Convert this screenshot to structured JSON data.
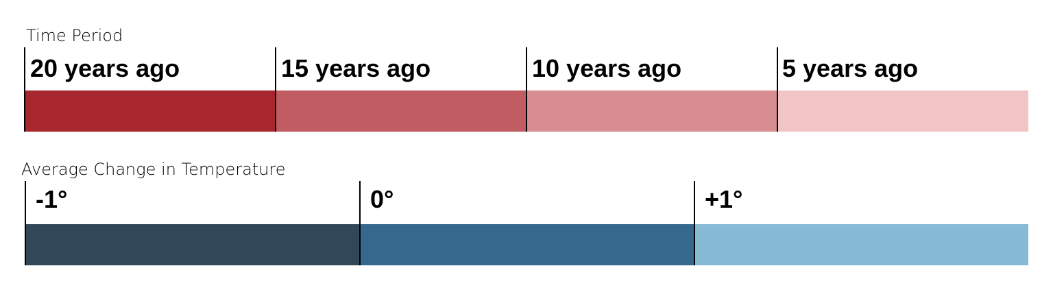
{
  "time_legend": {
    "title": "Time Period",
    "items": [
      {
        "label": "20 years ago",
        "color": "#a8262d"
      },
      {
        "label": "15 years ago",
        "color": "#c25c63"
      },
      {
        "label": "10 years ago",
        "color": "#d88e90"
      },
      {
        "label": "5 years ago",
        "color": "#f1c4c6"
      }
    ]
  },
  "temperature_legend": {
    "title": "Average Change in Temperature",
    "items": [
      {
        "label": "-1°",
        "color": "#324858"
      },
      {
        "label": "0°",
        "color": "#35688d"
      },
      {
        "label": "+1°",
        "color": "#86bad7"
      }
    ]
  }
}
